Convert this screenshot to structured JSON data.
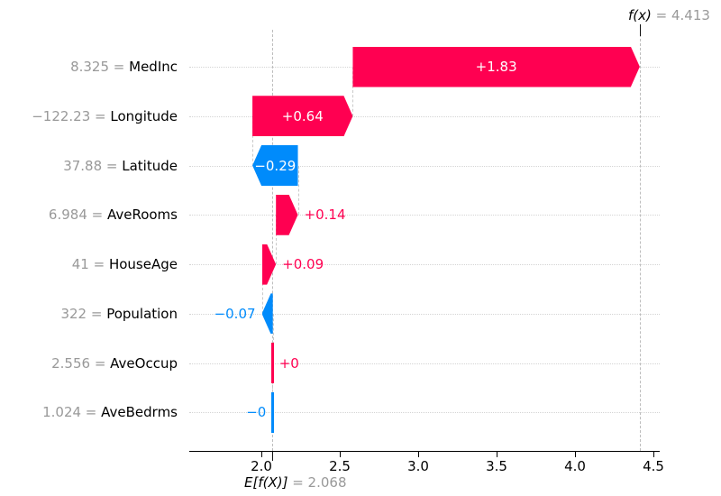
{
  "figure": {
    "background": "#ffffff",
    "colors": {
      "positive": "#ff0051",
      "negative": "#008bfb",
      "gray_text": "#999999",
      "black_text": "#000000",
      "grid_dotted": "#d4d4d4",
      "connector_dashed": "#c9c9c9",
      "ref_line_dashed": "#bdbdbd",
      "axis": "#000000",
      "bar_text_inside": "#ffffff"
    }
  },
  "chart_data": {
    "type": "waterfall",
    "title": "",
    "fx_value": 4.413,
    "base_value": 2.068,
    "annotations": {
      "fx_math": "f(x)",
      "fx_equals": " = 4.413",
      "base_math": "E[f(X)]",
      "base_equals": " = 2.068"
    },
    "x_ticks": [
      2.0,
      2.5,
      3.0,
      3.5,
      4.0,
      4.5
    ],
    "x_tick_labels": [
      "2.0",
      "2.5",
      "3.0",
      "3.5",
      "4.0",
      "4.5"
    ],
    "xlim": [
      1.54,
      4.54
    ],
    "grid": "dotted-horizontal-per-row",
    "features": [
      {
        "name": "MedInc",
        "data_value": "8.325",
        "contribution": 1.83,
        "label": "+1.83"
      },
      {
        "name": "Longitude",
        "data_value": "−122.23",
        "contribution": 0.64,
        "label": "+0.64"
      },
      {
        "name": "Latitude",
        "data_value": "37.88",
        "contribution": -0.29,
        "label": "−0.29"
      },
      {
        "name": "AveRooms",
        "data_value": "6.984",
        "contribution": 0.14,
        "label": "+0.14"
      },
      {
        "name": "HouseAge",
        "data_value": "41",
        "contribution": 0.09,
        "label": "+0.09"
      },
      {
        "name": "Population",
        "data_value": "322",
        "contribution": -0.07,
        "label": "−0.07"
      },
      {
        "name": "AveOccup",
        "data_value": "2.556",
        "contribution": 0.002,
        "label": "+0"
      },
      {
        "name": "AveBedrms",
        "data_value": "1.024",
        "contribution": -0.0005,
        "label": "−0"
      }
    ]
  }
}
